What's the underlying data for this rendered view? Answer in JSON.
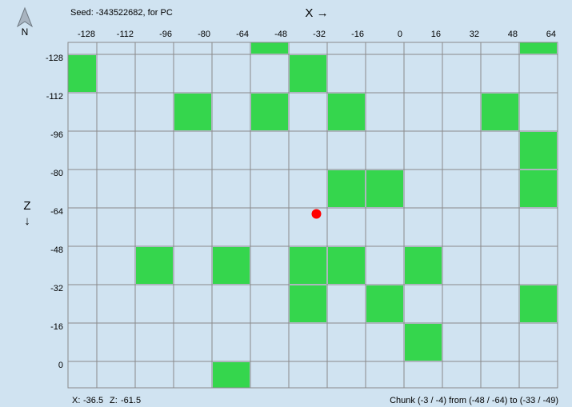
{
  "header": {
    "seed": "Seed: -343522682, for PC",
    "compass": "N",
    "x_axis_label": "X →",
    "z_axis_label": "Z",
    "z_arrow": "↓"
  },
  "map": {
    "xlim": [
      -140,
      64
    ],
    "zlim": [
      -133,
      11
    ],
    "xticks": [
      -128,
      -112,
      -96,
      -80,
      -64,
      -48,
      -32,
      -16,
      0,
      16,
      32,
      48,
      64
    ],
    "zticks": [
      -128,
      -112,
      -96,
      -80,
      -64,
      -48,
      -32,
      -16,
      0
    ],
    "chunk_size": 16,
    "slime_color": "#35d64d",
    "slime_chunks": [
      {
        "x": -144,
        "z": -128
      },
      {
        "x": -64,
        "z": -144
      },
      {
        "x": -48,
        "z": -128
      },
      {
        "x": 48,
        "z": -144
      },
      {
        "x": -96,
        "z": -112
      },
      {
        "x": -64,
        "z": -112
      },
      {
        "x": -32,
        "z": -112
      },
      {
        "x": 32,
        "z": -112
      },
      {
        "x": 48,
        "z": -96
      },
      {
        "x": -32,
        "z": -80
      },
      {
        "x": -16,
        "z": -80
      },
      {
        "x": 48,
        "z": -80
      },
      {
        "x": -112,
        "z": -48
      },
      {
        "x": -80,
        "z": -48
      },
      {
        "x": -48,
        "z": -48
      },
      {
        "x": -32,
        "z": -48
      },
      {
        "x": 0,
        "z": -48
      },
      {
        "x": -48,
        "z": -32
      },
      {
        "x": -16,
        "z": -32
      },
      {
        "x": 48,
        "z": -32
      },
      {
        "x": 0,
        "z": -16
      },
      {
        "x": -80,
        "z": 0
      }
    ],
    "player": {
      "x": -36.5,
      "z": -61.5,
      "color": "#ff0000"
    }
  },
  "footer": {
    "x_label": "X:",
    "x": -36.5,
    "z_label": "Z:",
    "z": -61.5,
    "chunk_info": "Chunk (-3 / -4) from (-48 / -64) to (-33 / -49)"
  }
}
